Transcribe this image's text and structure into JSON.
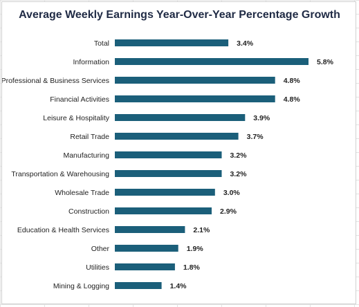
{
  "chart_data": {
    "type": "bar",
    "orientation": "horizontal",
    "title": "Average Weekly Earnings Year-Over-Year Percentage Growth",
    "categories": [
      "Total",
      "Information",
      "Professional & Business Services",
      "Financial Activities",
      "Leisure & Hospitality",
      "Retail Trade",
      "Manufacturing",
      "Transportation & Warehousing",
      "Wholesale Trade",
      "Construction",
      "Education & Health Services",
      "Other",
      "Utilities",
      "Mining & Logging"
    ],
    "values": [
      3.4,
      5.8,
      4.8,
      4.8,
      3.9,
      3.7,
      3.2,
      3.2,
      3.0,
      2.9,
      2.1,
      1.9,
      1.8,
      1.4
    ],
    "value_labels": [
      "3.4%",
      "5.8%",
      "4.8%",
      "4.8%",
      "3.9%",
      "3.7%",
      "3.2%",
      "3.2%",
      "3.0%",
      "2.9%",
      "2.1%",
      "1.9%",
      "1.8%",
      "1.4%"
    ],
    "xlabel": "",
    "ylabel": "",
    "xlim": [
      0,
      5.8
    ],
    "grid": false,
    "legend": "none",
    "bar_color": "#1b5f7a"
  }
}
